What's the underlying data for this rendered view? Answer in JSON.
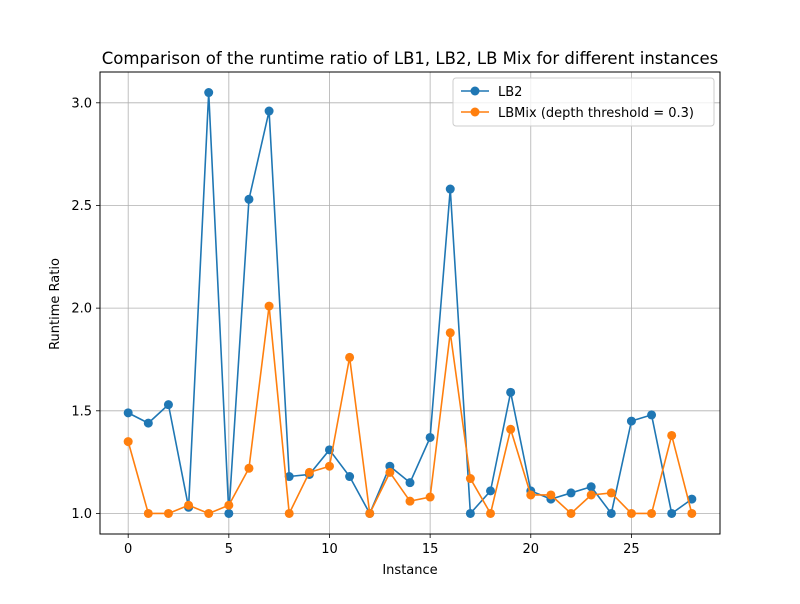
{
  "chart_data": {
    "type": "line",
    "title": "Comparison of the runtime ratio of LB1, LB2, LB Mix for different instances",
    "xlabel": "Instance",
    "ylabel": "Runtime Ratio",
    "xlim": [
      -1.4,
      29.4
    ],
    "ylim": [
      0.9,
      3.15
    ],
    "xticks": [
      0,
      5,
      10,
      15,
      20,
      25
    ],
    "yticks": [
      1.0,
      1.5,
      2.0,
      2.5,
      3.0
    ],
    "ytick_labels": [
      "1.0",
      "1.5",
      "2.0",
      "2.5",
      "3.0"
    ],
    "grid": true,
    "legend_position": "top-right",
    "x": [
      0,
      1,
      2,
      3,
      4,
      5,
      6,
      7,
      8,
      9,
      10,
      11,
      12,
      13,
      14,
      15,
      16,
      17,
      18,
      19,
      20,
      21,
      22,
      23,
      24,
      25,
      26,
      27,
      28
    ],
    "series": [
      {
        "name": "LB2",
        "color": "#1f77b4",
        "values": [
          1.49,
          1.44,
          1.53,
          1.03,
          3.05,
          1.0,
          2.53,
          2.96,
          1.18,
          1.19,
          1.31,
          1.18,
          1.0,
          1.23,
          1.15,
          1.37,
          2.58,
          1.0,
          1.11,
          1.59,
          1.11,
          1.07,
          1.1,
          1.13,
          1.0,
          1.45,
          1.48,
          1.0,
          1.07
        ]
      },
      {
        "name": "LBMix (depth threshold = 0.3)",
        "color": "#ff7f0e",
        "values": [
          1.35,
          1.0,
          1.0,
          1.04,
          1.0,
          1.04,
          1.22,
          2.01,
          1.0,
          1.2,
          1.23,
          1.76,
          1.0,
          1.2,
          1.06,
          1.08,
          1.88,
          1.17,
          1.0,
          1.41,
          1.09,
          1.09,
          1.0,
          1.09,
          1.1,
          1.0,
          1.0,
          1.38,
          1.0
        ]
      }
    ]
  }
}
